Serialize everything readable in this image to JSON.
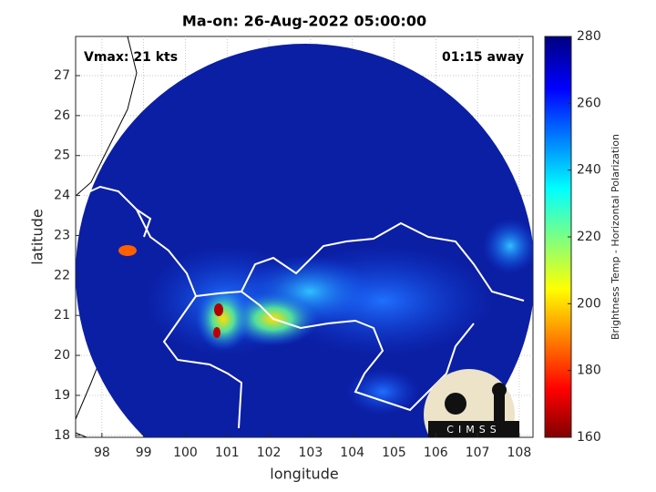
{
  "chart_data": {
    "type": "map",
    "title": "Ma-on: 26-Aug-2022 05:00:00",
    "annotations": [
      "Vmax: 21 kts",
      "01:15 away"
    ],
    "xlabel": "longitude",
    "ylabel": "latitude",
    "xlim": [
      97.37,
      108.33
    ],
    "xticks": [
      98,
      99,
      100,
      101,
      102,
      103,
      104,
      105,
      106,
      107,
      108
    ],
    "ylim": [
      17.95,
      27.98
    ],
    "yticks": [
      18,
      19,
      20,
      21,
      22,
      23,
      24,
      25,
      26,
      27
    ],
    "grid": true,
    "colorbar": {
      "label": "Brightness Temp - Horizontal Polarization",
      "lim": [
        160,
        280
      ],
      "ticks": [
        160,
        180,
        200,
        220,
        240,
        260,
        280
      ]
    },
    "logo": "CIMSS"
  }
}
